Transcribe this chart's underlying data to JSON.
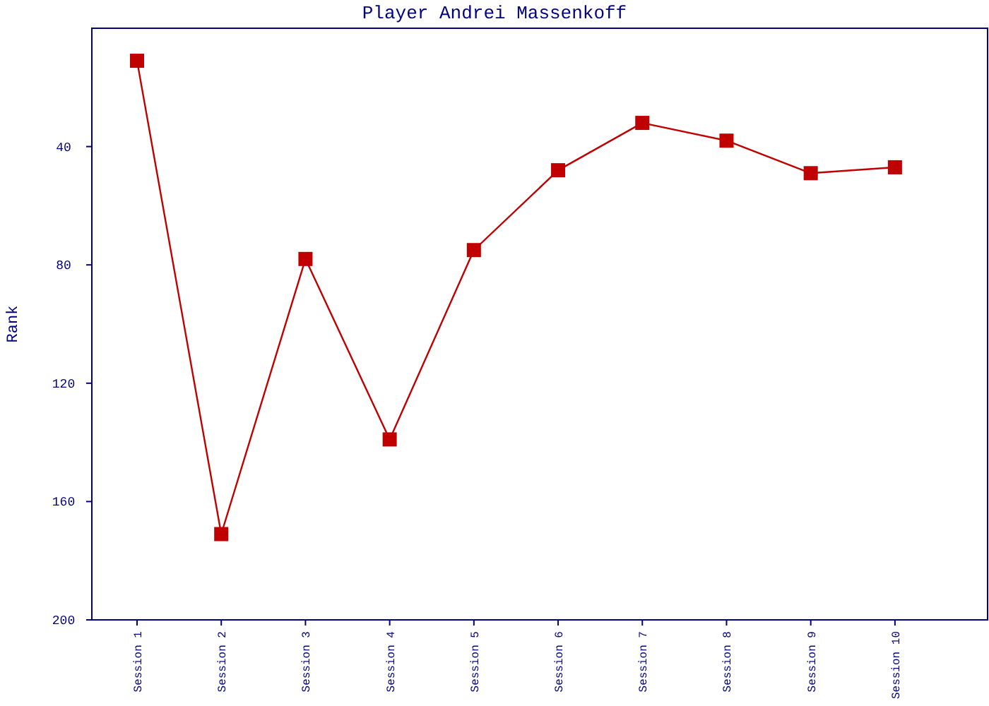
{
  "chart_data": {
    "type": "line",
    "title": "Player Andrei Massenkoff",
    "ylabel": "Rank",
    "categories": [
      "Session 1",
      "Session 2",
      "Session 3",
      "Session 4",
      "Session 5",
      "Session 6",
      "Session 7",
      "Session 8",
      "Session 9",
      "Session 10"
    ],
    "series": [
      {
        "color": "#c00000",
        "values": [
          11,
          171,
          78,
          139,
          75,
          48,
          32,
          38,
          49,
          47
        ]
      }
    ],
    "ylim": [
      200,
      0
    ],
    "yticks": [
      40,
      80,
      120,
      160,
      200
    ],
    "marker": "square",
    "line_style": "solid",
    "grid": false
  }
}
